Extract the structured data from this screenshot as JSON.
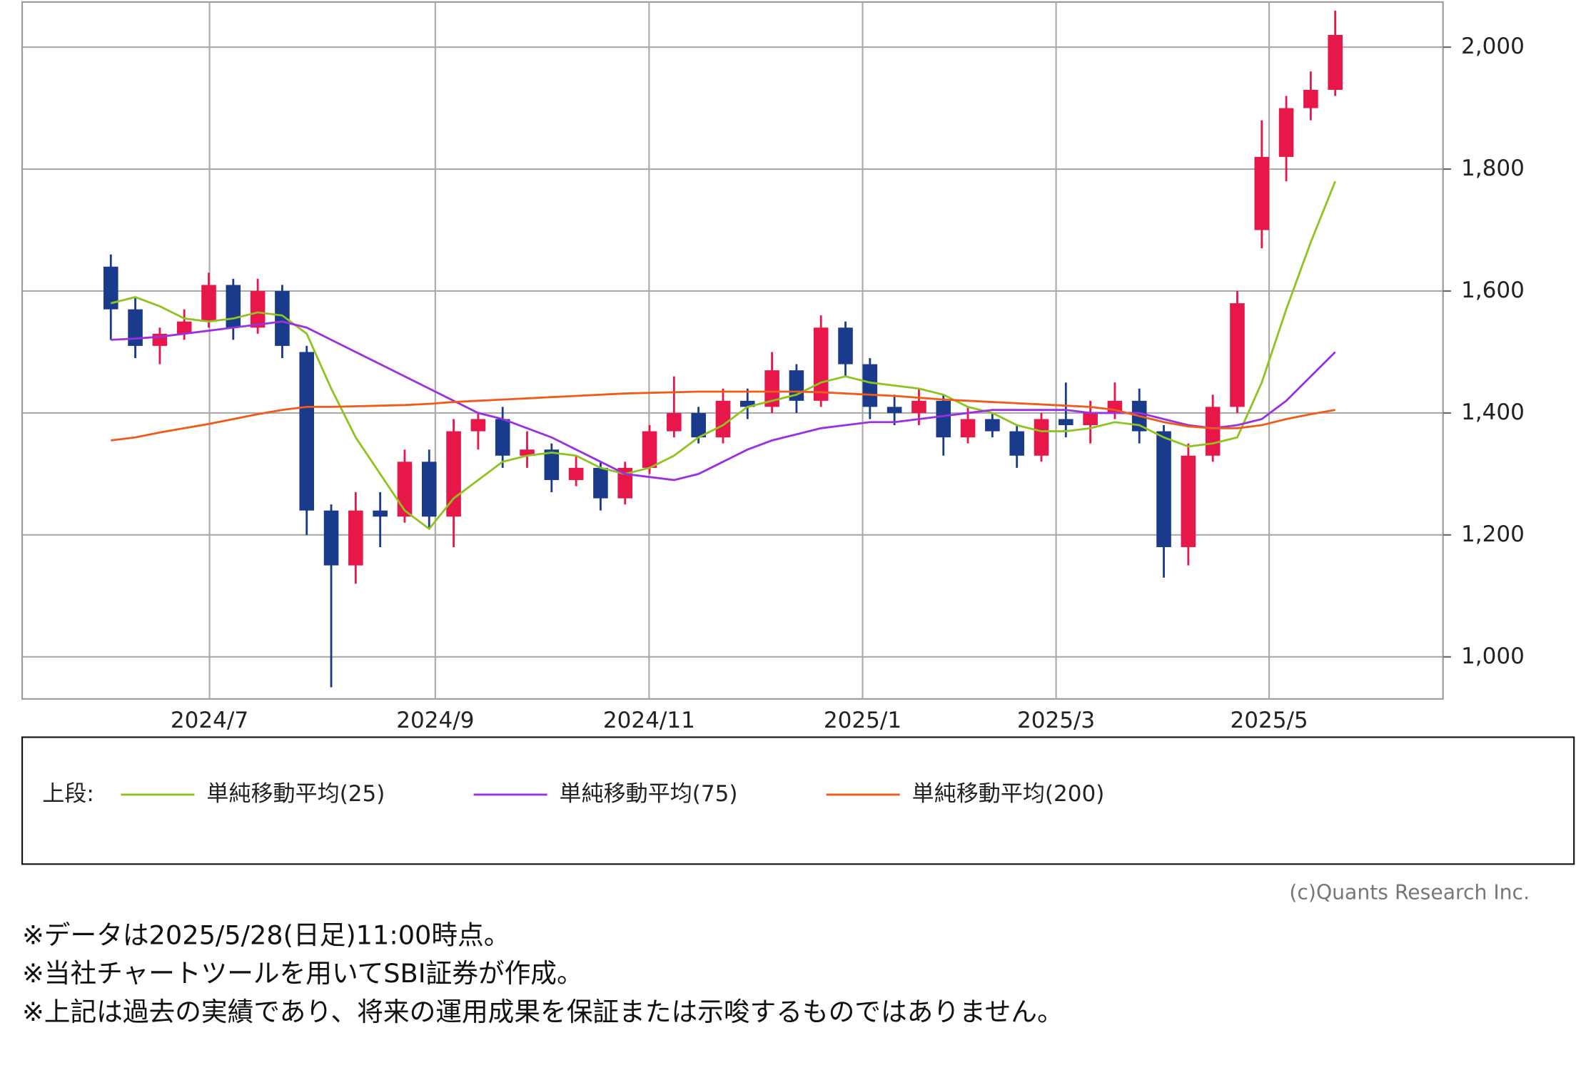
{
  "chart_data": {
    "type": "candlestick",
    "open": [
      1640,
      1570,
      1510,
      1530,
      1550,
      1610,
      1540,
      1600,
      1500,
      1240,
      1150,
      1240,
      1230,
      1320,
      1230,
      1370,
      1390,
      1330,
      1340,
      1290,
      1310,
      1260,
      1310,
      1370,
      1400,
      1360,
      1420,
      1410,
      1470,
      1420,
      1540,
      1480,
      1410,
      1400,
      1420,
      1360,
      1390,
      1370,
      1330,
      1390,
      1380,
      1400,
      1420,
      1370,
      1180,
      1330,
      1410,
      1700,
      1820,
      1900,
      1930
    ],
    "high": [
      1660,
      1590,
      1540,
      1570,
      1630,
      1620,
      1620,
      1610,
      1510,
      1250,
      1270,
      1270,
      1340,
      1340,
      1390,
      1400,
      1410,
      1370,
      1350,
      1330,
      1320,
      1320,
      1380,
      1460,
      1410,
      1440,
      1440,
      1500,
      1480,
      1560,
      1550,
      1490,
      1430,
      1440,
      1430,
      1410,
      1400,
      1380,
      1400,
      1450,
      1420,
      1450,
      1440,
      1380,
      1350,
      1430,
      1600,
      1880,
      1920,
      1960,
      2060
    ],
    "low": [
      1520,
      1490,
      1480,
      1520,
      1540,
      1520,
      1530,
      1490,
      1200,
      950,
      1120,
      1180,
      1220,
      1210,
      1180,
      1340,
      1310,
      1310,
      1270,
      1280,
      1240,
      1250,
      1300,
      1360,
      1350,
      1350,
      1390,
      1400,
      1400,
      1410,
      1460,
      1390,
      1380,
      1380,
      1330,
      1350,
      1360,
      1310,
      1320,
      1360,
      1350,
      1390,
      1350,
      1130,
      1150,
      1320,
      1400,
      1670,
      1780,
      1880,
      1920
    ],
    "close": [
      1570,
      1510,
      1530,
      1550,
      1610,
      1540,
      1600,
      1510,
      1240,
      1150,
      1240,
      1230,
      1320,
      1230,
      1370,
      1390,
      1330,
      1340,
      1290,
      1310,
      1260,
      1310,
      1370,
      1400,
      1360,
      1420,
      1410,
      1470,
      1420,
      1540,
      1480,
      1410,
      1400,
      1420,
      1360,
      1390,
      1370,
      1330,
      1390,
      1380,
      1400,
      1420,
      1370,
      1180,
      1330,
      1410,
      1580,
      1820,
      1900,
      1930,
      2020
    ],
    "up_color": "#e8174a",
    "down_color": "#1a3a8c",
    "series": [
      {
        "name": "単純移動平均(25)",
        "color": "#8fc31f",
        "values": [
          1580,
          1590,
          1575,
          1555,
          1550,
          1555,
          1565,
          1560,
          1530,
          1440,
          1360,
          1300,
          1240,
          1210,
          1260,
          1290,
          1320,
          1330,
          1335,
          1330,
          1310,
          1300,
          1310,
          1330,
          1360,
          1380,
          1410,
          1420,
          1430,
          1450,
          1460,
          1450,
          1445,
          1440,
          1430,
          1410,
          1400,
          1380,
          1370,
          1370,
          1375,
          1385,
          1380,
          1360,
          1345,
          1350,
          1360,
          1450,
          1570,
          1680,
          1780
        ]
      },
      {
        "name": "単純移動平均(75)",
        "color": "#9b30e0",
        "values": [
          1520,
          1522,
          1525,
          1530,
          1535,
          1540,
          1545,
          1550,
          1540,
          1520,
          1500,
          1480,
          1460,
          1440,
          1420,
          1400,
          1390,
          1375,
          1360,
          1340,
          1320,
          1300,
          1295,
          1290,
          1300,
          1320,
          1340,
          1355,
          1365,
          1375,
          1380,
          1385,
          1385,
          1390,
          1395,
          1400,
          1405,
          1405,
          1405,
          1405,
          1400,
          1400,
          1400,
          1390,
          1380,
          1375,
          1380,
          1390,
          1420,
          1460,
          1500
        ]
      },
      {
        "name": "単純移動平均(200)",
        "color": "#f05a1a",
        "values": [
          1355,
          1360,
          1368,
          1375,
          1382,
          1390,
          1398,
          1405,
          1410,
          1410,
          1411,
          1412,
          1413,
          1415,
          1418,
          1420,
          1422,
          1424,
          1426,
          1428,
          1430,
          1432,
          1433,
          1434,
          1435,
          1435,
          1435,
          1435,
          1435,
          1434,
          1432,
          1430,
          1428,
          1425,
          1422,
          1420,
          1418,
          1416,
          1414,
          1412,
          1410,
          1405,
          1395,
          1385,
          1378,
          1375,
          1375,
          1380,
          1390,
          1398,
          1405
        ]
      }
    ],
    "xlim": [
      -3.62,
      54.4
    ],
    "xticks": [
      {
        "value": 4.03,
        "label": "2024/7"
      },
      {
        "value": 13.25,
        "label": "2024/9"
      },
      {
        "value": 21.98,
        "label": "2024/11"
      },
      {
        "value": 30.7,
        "label": "2025/1"
      },
      {
        "value": 38.6,
        "label": "2025/3"
      },
      {
        "value": 47.3,
        "label": "2025/5"
      }
    ],
    "ylim": [
      931,
      2074
    ],
    "yticks": [
      {
        "value": 1000,
        "label": "1,000"
      },
      {
        "value": 1200,
        "label": "1,200"
      },
      {
        "value": 1400,
        "label": "1,400"
      },
      {
        "value": 1600,
        "label": "1,600"
      },
      {
        "value": 1800,
        "label": "1,800"
      },
      {
        "value": 2000,
        "label": "2,000"
      }
    ],
    "grid": true,
    "legend_prefix": "上段:",
    "credit": "(c)Quants Research Inc."
  },
  "notes": [
    "※データは2025/5/28(日足)11:00時点。",
    "※当社チャートツールを用いてSBI証券が作成。",
    "※上記は過去の実績であり、将来の運用成果を保証または示唆するものではありません。"
  ]
}
